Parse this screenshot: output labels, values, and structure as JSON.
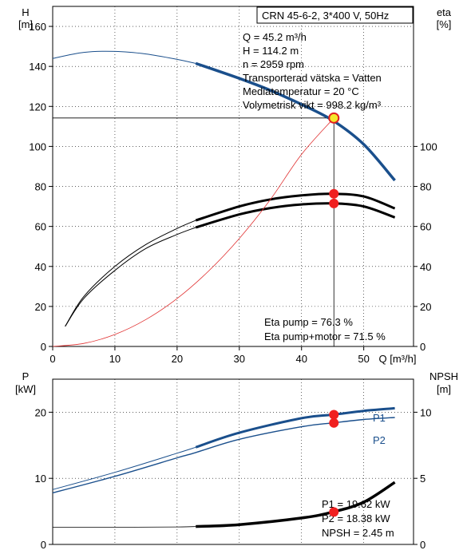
{
  "chart_data": [
    {
      "type": "line",
      "header": "CRN 45-6-2, 3*400 V, 50Hz",
      "xlabel": "Q [m³/h]",
      "x_ticks": [
        0,
        10,
        20,
        30,
        40,
        50
      ],
      "xlim": [
        0,
        58
      ],
      "ylabel_left_line1": "H",
      "ylabel_left_line2": "[m]",
      "ylim_left": [
        0,
        170
      ],
      "y_ticks_left": [
        0,
        20,
        40,
        60,
        80,
        100,
        120,
        140,
        160
      ],
      "ylabel_right_line1": "eta",
      "ylabel_right_line2": "[%]",
      "ylim_right": [
        0,
        170
      ],
      "y_ticks_right": [
        0,
        20,
        40,
        60,
        80,
        100
      ],
      "info_lines": [
        "Q = 45.2 m³/h",
        "H = 114.2 m",
        "n = 2959 rpm",
        "Transporterad vätska = Vatten",
        "Mediatemperatur = 20 °C",
        "Volymetrisk vikt = 998.2 kg/m³"
      ],
      "result_lines": [
        "Eta pump = 76.3 %",
        "Eta pump+motor = 71.5 %"
      ],
      "operating_point": {
        "q": 45.2,
        "h": 114.2,
        "eta_pump": 76.3,
        "eta_pump_motor": 71.5
      },
      "series": [
        {
          "key": "head",
          "color": "#1a4f8c",
          "x": [
            0,
            5,
            10,
            15,
            20,
            23,
            30,
            35,
            40,
            45,
            50,
            55
          ],
          "y": [
            144,
            147,
            147.5,
            146.2,
            143.5,
            141.5,
            134,
            128,
            121,
            113,
            101,
            83
          ],
          "bold_from": 23
        },
        {
          "key": "eta_pump",
          "color": "#000000",
          "x": [
            2,
            5,
            10,
            15,
            20,
            23,
            30,
            35,
            40,
            45,
            50,
            55
          ],
          "y": [
            10,
            25,
            40,
            51,
            59,
            63,
            70,
            73.5,
            75.5,
            76.3,
            75,
            69
          ],
          "bold_from": 23
        },
        {
          "key": "eta_pump_motor",
          "color": "#000000",
          "x": [
            2,
            5,
            10,
            15,
            20,
            23,
            30,
            35,
            40,
            45,
            50,
            55
          ],
          "y": [
            10,
            24,
            38,
            49,
            56,
            59.5,
            66,
            69.2,
            71,
            71.5,
            70,
            64.5
          ],
          "bold_from": 23
        },
        {
          "key": "system",
          "color": "#e03030",
          "x": [
            0,
            5,
            10,
            15,
            20,
            25,
            30,
            35,
            40,
            45.2
          ],
          "y": [
            0,
            1.5,
            6,
            13.5,
            24,
            37.5,
            54,
            73.5,
            96,
            114.2
          ]
        }
      ]
    },
    {
      "type": "line",
      "xlim": [
        0,
        58
      ],
      "ylabel_left_line1": "P",
      "ylabel_left_line2": "[kW]",
      "ylim_left": [
        0,
        25
      ],
      "y_ticks_left": [
        0,
        10,
        20
      ],
      "ylabel_right_line1": "NPSH",
      "ylabel_right_line2": "[m]",
      "ylim_right": [
        0,
        12.5
      ],
      "y_ticks_right": [
        0,
        5,
        10
      ],
      "result_lines": [
        "P1 = 19.62 kW",
        "P2 = 18.38 kW",
        "NPSH = 2.45 m"
      ],
      "operating_point": {
        "q": 45.2,
        "p1": 19.62,
        "p2": 18.38,
        "npsh": 2.45
      },
      "series": [
        {
          "key": "p1",
          "name": "P1",
          "color": "#1a4f8c",
          "x": [
            0,
            10,
            20,
            23,
            30,
            40,
            45,
            50,
            55
          ],
          "y": [
            8.3,
            10.9,
            13.8,
            14.7,
            16.9,
            19.1,
            19.62,
            20.2,
            20.6
          ],
          "bold_from": 23
        },
        {
          "key": "p2",
          "name": "P2",
          "color": "#1a4f8c",
          "x": [
            0,
            10,
            20,
            23,
            30,
            40,
            45,
            50,
            55
          ],
          "y": [
            7.8,
            10.3,
            13.1,
            13.9,
            15.9,
            17.8,
            18.38,
            18.9,
            19.2
          ]
        },
        {
          "key": "npsh",
          "color": "#000000",
          "x": [
            0,
            10,
            20,
            23,
            30,
            40,
            45,
            50,
            55
          ],
          "y": [
            1.3,
            1.3,
            1.32,
            1.35,
            1.5,
            2.0,
            2.45,
            3.2,
            4.7
          ],
          "bold_from": 23
        }
      ]
    }
  ]
}
